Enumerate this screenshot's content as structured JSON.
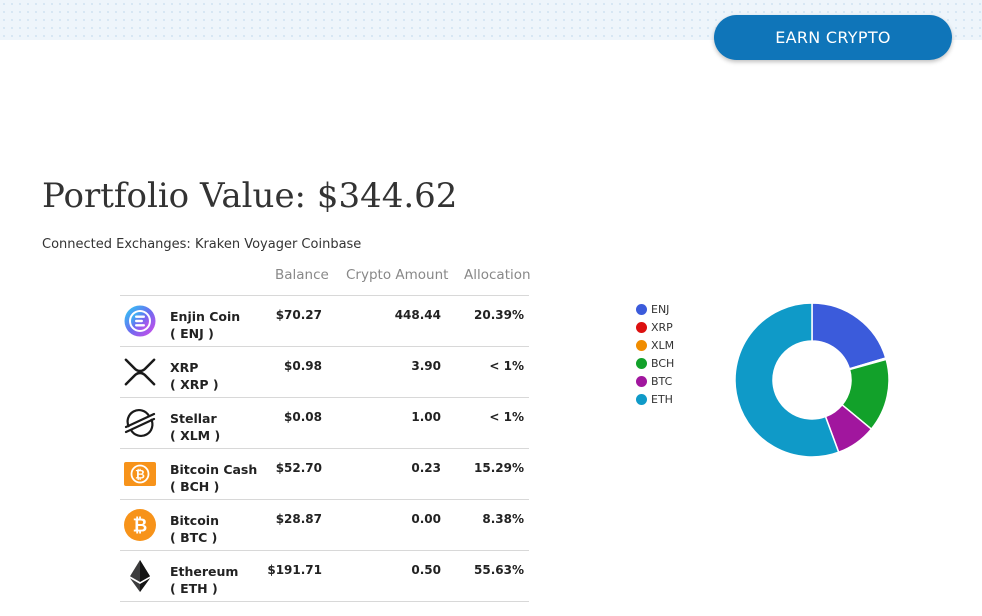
{
  "header": {
    "earn_button_label": "EARN CRYPTO"
  },
  "portfolio": {
    "title": "Portfolio Value: $344.62",
    "connected_exchanges": "Connected Exchanges: Kraken Voyager Coinbase"
  },
  "table": {
    "columns": {
      "balance": "Balance",
      "crypto_amount": "Crypto Amount",
      "allocation": "Allocation"
    },
    "rows": [
      {
        "name": "Enjin Coin",
        "symbol": "( ENJ )",
        "balance": "$70.27",
        "amount": "448.44",
        "allocation": "20.39%",
        "icon": "enjin-icon"
      },
      {
        "name": "XRP",
        "symbol": "( XRP )",
        "balance": "$0.98",
        "amount": "3.90",
        "allocation": "< 1%",
        "icon": "xrp-icon"
      },
      {
        "name": "Stellar",
        "symbol": "( XLM )",
        "balance": "$0.08",
        "amount": "1.00",
        "allocation": "< 1%",
        "icon": "stellar-icon"
      },
      {
        "name": "Bitcoin Cash",
        "symbol": "( BCH )",
        "balance": "$52.70",
        "amount": "0.23",
        "allocation": "15.29%",
        "icon": "bitcoin-cash-icon"
      },
      {
        "name": "Bitcoin",
        "symbol": "( BTC )",
        "balance": "$28.87",
        "amount": "0.00",
        "allocation": "8.38%",
        "icon": "bitcoin-icon"
      },
      {
        "name": "Ethereum",
        "symbol": "( ETH )",
        "balance": "$191.71",
        "amount": "0.50",
        "allocation": "55.63%",
        "icon": "ethereum-icon"
      }
    ]
  },
  "chart_data": {
    "type": "pie",
    "legend_position": "left",
    "categories": [
      "ENJ",
      "XRP",
      "XLM",
      "BCH",
      "BTC",
      "ETH"
    ],
    "values": [
      70.27,
      0.98,
      0.08,
      52.7,
      28.87,
      191.71
    ],
    "colors": [
      "#3b5bdb",
      "#dc1010",
      "#f08c00",
      "#12a12a",
      "#a1169e",
      "#0f9ac8"
    ]
  }
}
